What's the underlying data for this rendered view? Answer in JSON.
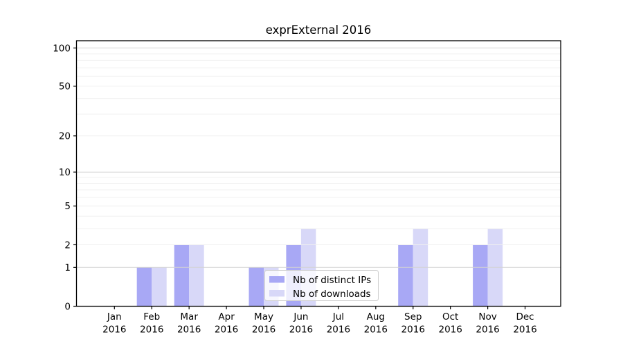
{
  "chart_data": {
    "type": "bar",
    "title": "exprExternal 2016",
    "categories": [
      {
        "month": "Jan",
        "year": "2016"
      },
      {
        "month": "Feb",
        "year": "2016"
      },
      {
        "month": "Mar",
        "year": "2016"
      },
      {
        "month": "Apr",
        "year": "2016"
      },
      {
        "month": "May",
        "year": "2016"
      },
      {
        "month": "Jun",
        "year": "2016"
      },
      {
        "month": "Jul",
        "year": "2016"
      },
      {
        "month": "Aug",
        "year": "2016"
      },
      {
        "month": "Sep",
        "year": "2016"
      },
      {
        "month": "Oct",
        "year": "2016"
      },
      {
        "month": "Nov",
        "year": "2016"
      },
      {
        "month": "Dec",
        "year": "2016"
      }
    ],
    "series": [
      {
        "name": "Nb of distinct IPs",
        "color": "#a8a8f5",
        "values": [
          0,
          1,
          2,
          0,
          1,
          2,
          0,
          0,
          2,
          0,
          2,
          0
        ]
      },
      {
        "name": "Nb of downloads",
        "color": "#d8d8f8",
        "values": [
          0,
          1,
          2,
          0,
          1,
          3,
          0,
          0,
          3,
          0,
          3,
          0
        ]
      }
    ],
    "yscale": "log1p",
    "ylim": [
      0,
      114
    ],
    "yticks": [
      0,
      1,
      2,
      5,
      10,
      20,
      50,
      100
    ],
    "major_gridlines": [
      1,
      10,
      100
    ],
    "minor_gridlines": [
      2,
      3,
      4,
      5,
      6,
      7,
      8,
      9,
      20,
      30,
      40,
      50,
      60,
      70,
      80,
      90
    ],
    "grid": true,
    "legend_position": "lower center",
    "colors": {
      "major_grid": "#d2d2d2",
      "minor_grid": "#f0f0f0",
      "axis": "#000000",
      "legend_border": "#cccccc",
      "legend_bg": "rgba(255,255,255,0.8)"
    }
  }
}
